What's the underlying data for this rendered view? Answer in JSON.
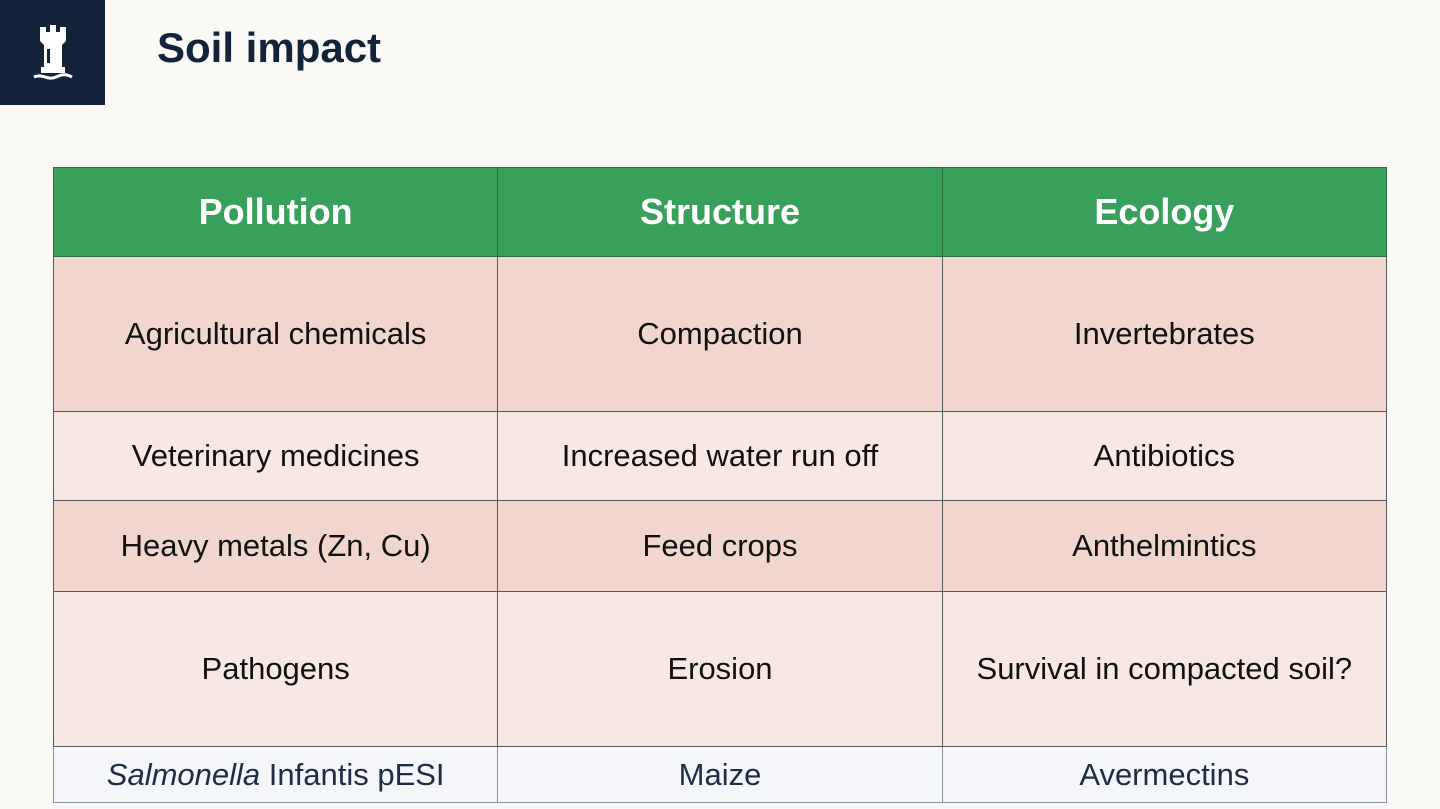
{
  "slide": {
    "title": "Soil impact"
  },
  "logo": {
    "icon": "castle-tower-icon",
    "colors": {
      "background": "#13233a",
      "mark": "#ffffff"
    }
  },
  "table": {
    "headers": [
      "Pollution",
      "Structure",
      "Ecology"
    ],
    "rows": [
      [
        "Agricultural chemicals",
        "Compaction",
        "Invertebrates"
      ],
      [
        "Veterinary medicines",
        "Increased water run off",
        "Antibiotics"
      ],
      [
        "Heavy metals (Zn, Cu)",
        "Feed crops",
        "Anthelmintics"
      ],
      [
        "Pathogens",
        "Erosion",
        "Survival in compacted soil?"
      ]
    ],
    "footer_row": {
      "col1_italic": "Salmonella",
      "col1_rest": " Infantis pESI",
      "col2": "Maize",
      "col3": "Avermectins"
    },
    "colors": {
      "header": "#38a05a",
      "row_dark": "#f0d6cc",
      "row_light": "#f7e8e4",
      "footer": "#f4f6f9"
    }
  }
}
